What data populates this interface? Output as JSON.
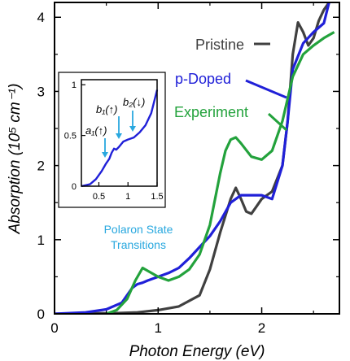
{
  "chart_data": [
    {
      "type": "line",
      "xlabel": "Photon Energy (eV)",
      "ylabel": "Absorption (10⁵ cm⁻¹)",
      "xlim": [
        0,
        2.75
      ],
      "ylim": [
        0,
        4.2
      ],
      "x_ticks": [
        "0",
        "1",
        "2"
      ],
      "y_ticks": [
        "0",
        "1",
        "2",
        "3",
        "4"
      ],
      "grid": false,
      "series": [
        {
          "name": "Pristine",
          "color": "#404040",
          "x": [
            0,
            0.6,
            0.8,
            1.0,
            1.2,
            1.4,
            1.5,
            1.6,
            1.7,
            1.75,
            1.8,
            1.85,
            1.9,
            1.95,
            2.0,
            2.1,
            2.2,
            2.25,
            2.3,
            2.35,
            2.4,
            2.45,
            2.5,
            2.55,
            2.6,
            2.65
          ],
          "y": [
            0,
            0.01,
            0.02,
            0.05,
            0.1,
            0.25,
            0.6,
            1.1,
            1.55,
            1.7,
            1.55,
            1.38,
            1.35,
            1.45,
            1.55,
            1.65,
            2.0,
            2.6,
            3.5,
            3.93,
            3.8,
            3.62,
            3.72,
            3.95,
            4.1,
            4.2
          ]
        },
        {
          "name": "p-Doped",
          "color": "#2020d8",
          "x": [
            0,
            0.3,
            0.5,
            0.65,
            0.75,
            0.8,
            0.85,
            0.9,
            1.0,
            1.1,
            1.2,
            1.3,
            1.4,
            1.5,
            1.6,
            1.7,
            1.8,
            1.9,
            2.0,
            2.1,
            2.2,
            2.25,
            2.3,
            2.4,
            2.5,
            2.6,
            2.65
          ],
          "y": [
            0,
            0.02,
            0.06,
            0.15,
            0.35,
            0.4,
            0.42,
            0.45,
            0.5,
            0.55,
            0.62,
            0.75,
            0.9,
            1.05,
            1.25,
            1.5,
            1.6,
            1.6,
            1.6,
            1.55,
            2.0,
            2.6,
            3.3,
            3.65,
            3.8,
            3.92,
            4.2
          ]
        },
        {
          "name": "Experiment",
          "color": "#23a23c",
          "x": [
            0.5,
            0.6,
            0.7,
            0.78,
            0.85,
            0.9,
            1.0,
            1.1,
            1.2,
            1.3,
            1.4,
            1.5,
            1.6,
            1.65,
            1.7,
            1.75,
            1.8,
            1.9,
            2.0,
            2.1,
            2.2,
            2.3,
            2.4,
            2.5,
            2.6,
            2.7
          ],
          "y": [
            0,
            0.05,
            0.2,
            0.45,
            0.62,
            0.58,
            0.5,
            0.45,
            0.5,
            0.6,
            0.8,
            1.2,
            1.9,
            2.2,
            2.35,
            2.38,
            2.3,
            2.12,
            2.08,
            2.2,
            2.6,
            3.2,
            3.5,
            3.62,
            3.72,
            3.8
          ]
        }
      ]
    },
    {
      "type": "line",
      "xlabel": "",
      "ylabel": "",
      "xlim": [
        0.2,
        1.5
      ],
      "ylim": [
        0,
        1.05
      ],
      "x_ticks": [
        "0.5",
        "1",
        "1.5"
      ],
      "y_ticks": [
        "0",
        "0.5",
        "1"
      ],
      "series": [
        {
          "color": "#2020d8",
          "x": [
            0.2,
            0.35,
            0.45,
            0.55,
            0.62,
            0.68,
            0.72,
            0.76,
            0.8,
            0.85,
            0.92,
            1.0,
            1.05,
            1.1,
            1.2,
            1.3,
            1.4,
            1.5
          ],
          "y": [
            0.0,
            0.02,
            0.07,
            0.15,
            0.22,
            0.27,
            0.33,
            0.37,
            0.36,
            0.39,
            0.44,
            0.46,
            0.47,
            0.48,
            0.53,
            0.6,
            0.72,
            0.95
          ]
        }
      ],
      "annotations": [
        {
          "text": "a₁(↑)",
          "x": 0.62,
          "y": 0.22
        },
        {
          "text": "b₁(↑)",
          "x": 0.78,
          "y": 0.36
        },
        {
          "text": "b₂(↓)",
          "x": 1.05,
          "y": 0.47
        }
      ]
    }
  ],
  "annotations": {
    "pristine_label": "Pristine",
    "pdoped_label": "p-Doped",
    "experiment_label": "Experiment",
    "polaron_line1": "Polaron State",
    "polaron_line2": "Transitions",
    "inset_label_a1": "a₁(↑)",
    "inset_label_b1": "b₁(↑)",
    "inset_label_b2": "b₂(↓)",
    "arrow_color": "#29a8df"
  }
}
